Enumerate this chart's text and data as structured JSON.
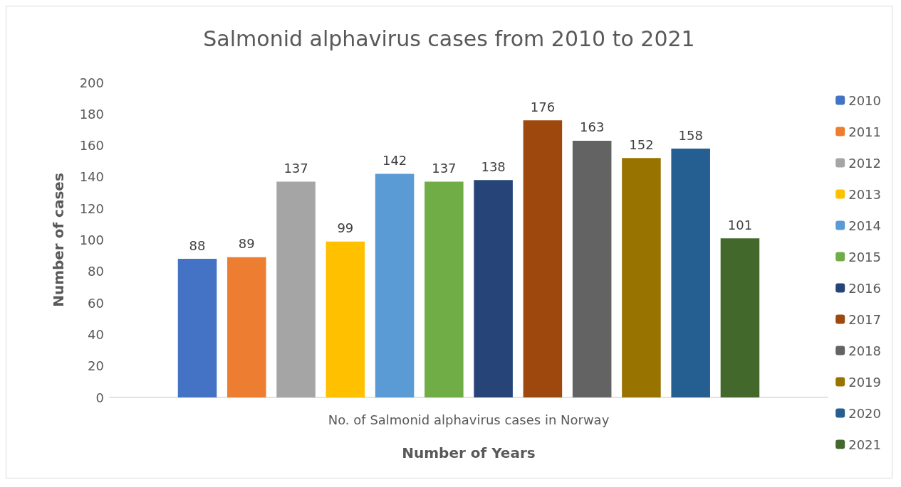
{
  "chart_data": {
    "type": "bar",
    "title": "Salmonid alphavirus cases from 2010 to 2021",
    "xlabel": "Number of Years",
    "ylabel": "Number of cases",
    "categories": [
      "No. of Salmonid alphavirus cases in Norway"
    ],
    "series": [
      {
        "name": "2010",
        "color": "#4472c4",
        "values": [
          88
        ]
      },
      {
        "name": "2011",
        "color": "#ed7d31",
        "values": [
          89
        ]
      },
      {
        "name": "2012",
        "color": "#a5a5a5",
        "values": [
          137
        ]
      },
      {
        "name": "2013",
        "color": "#ffc000",
        "values": [
          99
        ]
      },
      {
        "name": "2014",
        "color": "#5b9bd5",
        "values": [
          142
        ]
      },
      {
        "name": "2015",
        "color": "#70ad47",
        "values": [
          137
        ]
      },
      {
        "name": "2016",
        "color": "#264478",
        "values": [
          138
        ]
      },
      {
        "name": "2017",
        "color": "#9e480e",
        "values": [
          176
        ]
      },
      {
        "name": "2018",
        "color": "#636363",
        "values": [
          163
        ]
      },
      {
        "name": "2019",
        "color": "#997300",
        "values": [
          152
        ]
      },
      {
        "name": "2020",
        "color": "#255e91",
        "values": [
          158
        ]
      },
      {
        "name": "2021",
        "color": "#43682b",
        "values": [
          101
        ]
      }
    ],
    "ylim": [
      0,
      200
    ],
    "yticks": [
      0,
      20,
      40,
      60,
      80,
      100,
      120,
      140,
      160,
      180,
      200
    ],
    "grid": false,
    "legend": "right",
    "data_labels": true
  }
}
